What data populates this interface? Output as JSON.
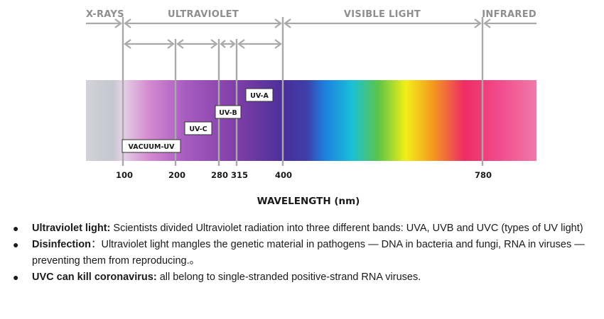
{
  "diagram": {
    "regions": [
      "X-RAYS",
      "ULTRAVIOLET",
      "VISIBLE LIGHT",
      "INFRARED"
    ],
    "bands": [
      "VACUUM-UV",
      "UV-C",
      "UV-B",
      "UV-A"
    ],
    "ticks": [
      "100",
      "200",
      "280",
      "315",
      "400",
      "780"
    ],
    "axis_title": "WAVELENGTH (nm)",
    "colors": {
      "xray": "#d2d2d8",
      "uv": "#7d3da6",
      "uv_violet": "#4a2f9a",
      "blue": "#1f7fe0",
      "cyan": "#19c0d8",
      "green": "#5cc548",
      "yellow": "#f2ef19",
      "orange": "#f49a1e",
      "red": "#ee2c64",
      "infrared": "#f179aa",
      "arrow": "#a9a9a9"
    }
  },
  "notes": [
    {
      "title": "Ultraviolet light:",
      "text": " Scientists divided Ultraviolet radiation into three different bands: UVA, UVB and UVC (types of UV light)"
    },
    {
      "title": "Disinfection",
      "text": "：Ultraviolet light mangles the genetic material in pathogens — DNA in bacteria and fungi, RNA in viruses — preventing them from reproducing.。"
    },
    {
      "title": "UVC can kill coronavirus:",
      "text": " all belong to single-stranded positive-strand RNA viruses."
    }
  ]
}
